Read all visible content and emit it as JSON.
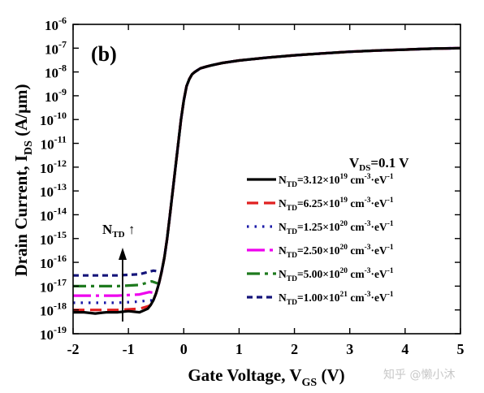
{
  "chart_data": {
    "type": "line",
    "panel_label": "(b)",
    "xlabel": {
      "main": "Gate Voltage, V",
      "sub": "GS",
      "tail": " (V)"
    },
    "ylabel": {
      "main": "Drain Current, I",
      "sub": "DS",
      "tail": " (A/μm)"
    },
    "xlim": [
      -2,
      5
    ],
    "ylim_log10": [
      -19,
      -6
    ],
    "y_scale": "log",
    "x_ticks": [
      -2,
      -1,
      0,
      1,
      2,
      3,
      4,
      5
    ],
    "x_tick_labels": [
      "-2",
      "-1",
      "0",
      "1",
      "2",
      "3",
      "4",
      "5"
    ],
    "y_tick_exponents": [
      -19,
      -18,
      -17,
      -16,
      -15,
      -14,
      -13,
      -12,
      -11,
      -10,
      -9,
      -8,
      -7,
      -6
    ],
    "y_tick_base": "10",
    "condition": {
      "main": "V",
      "sub": "DS",
      "tail": "=0.1 V"
    },
    "arrow_label": {
      "main": "N",
      "sub": "TD",
      "tail": " ↑"
    },
    "watermark": "知乎 @懒小沐",
    "common_x": [
      -0.6,
      -0.55,
      -0.5,
      -0.45,
      -0.4,
      -0.35,
      -0.3,
      -0.25,
      -0.2,
      -0.15,
      -0.1,
      -0.05,
      0,
      0.05,
      0.1,
      0.15,
      0.2,
      0.3,
      0.4,
      0.5,
      0.7,
      1.0,
      1.5,
      2.0,
      2.5,
      3.0,
      3.5,
      4.0,
      4.5,
      5.0
    ],
    "common_log10_I": [
      -17.8,
      -17.6,
      -17.3,
      -16.9,
      -16.4,
      -15.8,
      -15.0,
      -14.0,
      -13.0,
      -12.0,
      -11.0,
      -10.0,
      -9.2,
      -8.6,
      -8.3,
      -8.1,
      -8.0,
      -7.85,
      -7.78,
      -7.72,
      -7.62,
      -7.52,
      -7.4,
      -7.3,
      -7.22,
      -7.15,
      -7.1,
      -7.06,
      -7.02,
      -7.0
    ],
    "series": [
      {
        "name_base": "N",
        "name_sub": "TD",
        "value": "=3.12×10",
        "exp": "19",
        "unit_a": " cm",
        "unit_exp1": "-3",
        "unit_b": "·eV",
        "unit_exp2": "-1",
        "color": "#000000",
        "dash": "",
        "width": 3.2,
        "floor_log10": -18.1,
        "floor_x": [
          -2.0,
          -1.8,
          -1.6,
          -1.4,
          -1.2,
          -1.0,
          -0.8,
          -0.65
        ],
        "floor_y": [
          -18.1,
          -18.1,
          -18.15,
          -18.1,
          -18.1,
          -18.05,
          -18.1,
          -17.95
        ]
      },
      {
        "name_base": "N",
        "name_sub": "TD",
        "value": "=6.25×10",
        "exp": "19",
        "unit_a": " cm",
        "unit_exp1": "-3",
        "unit_b": "·eV",
        "unit_exp2": "-1",
        "color": "#e02020",
        "dash": "14,7",
        "width": 3.2,
        "floor_log10": -18.0,
        "floor_x": [
          -2.0,
          -1.6,
          -1.2,
          -0.8,
          -0.65
        ],
        "floor_y": [
          -18.0,
          -18.0,
          -18.0,
          -17.95,
          -17.85
        ]
      },
      {
        "name_base": "N",
        "name_sub": "TD",
        "value": "=1.25×10",
        "exp": "20",
        "unit_a": " cm",
        "unit_exp1": "-3",
        "unit_b": "·eV",
        "unit_exp2": "-1",
        "color": "#1a1aa8",
        "dash": "2.5,7",
        "width": 3.2,
        "floor_log10": -17.7,
        "floor_x": [
          -2.0,
          -1.6,
          -1.2,
          -0.8,
          -0.65
        ],
        "floor_y": [
          -17.7,
          -17.7,
          -17.7,
          -17.65,
          -17.6
        ]
      },
      {
        "name_base": "N",
        "name_sub": "TD",
        "value": "=2.50×10",
        "exp": "20",
        "unit_a": " cm",
        "unit_exp1": "-3",
        "unit_b": "·eV",
        "unit_exp2": "-1",
        "color": "#ee00ee",
        "dash": "22,6,4,6",
        "width": 3.2,
        "floor_log10": -17.4,
        "floor_x": [
          -2.0,
          -1.6,
          -1.2,
          -0.8,
          -0.62
        ],
        "floor_y": [
          -17.4,
          -17.4,
          -17.4,
          -17.35,
          -17.25
        ]
      },
      {
        "name_base": "N",
        "name_sub": "TD",
        "value": "=5.00×10",
        "exp": "20",
        "unit_a": " cm",
        "unit_exp1": "-3",
        "unit_b": "·eV",
        "unit_exp2": "-1",
        "color": "#1e7a1e",
        "dash": "16,6,4,6",
        "width": 3.2,
        "floor_log10": -17.0,
        "floor_x": [
          -2.0,
          -1.6,
          -1.2,
          -0.8,
          -0.58
        ],
        "floor_y": [
          -17.0,
          -17.0,
          -17.0,
          -16.95,
          -16.8
        ]
      },
      {
        "name_base": "N",
        "name_sub": "TD",
        "value": "=1.00×10",
        "exp": "21",
        "unit_a": " cm",
        "unit_exp1": "-3",
        "unit_b": "·eV",
        "unit_exp2": "-1",
        "color": "#14147a",
        "dash": "7,5",
        "width": 3.2,
        "floor_log10": -16.55,
        "floor_x": [
          -2.0,
          -1.6,
          -1.2,
          -0.8,
          -0.55
        ],
        "floor_y": [
          -16.55,
          -16.55,
          -16.55,
          -16.5,
          -16.35
        ]
      }
    ]
  }
}
